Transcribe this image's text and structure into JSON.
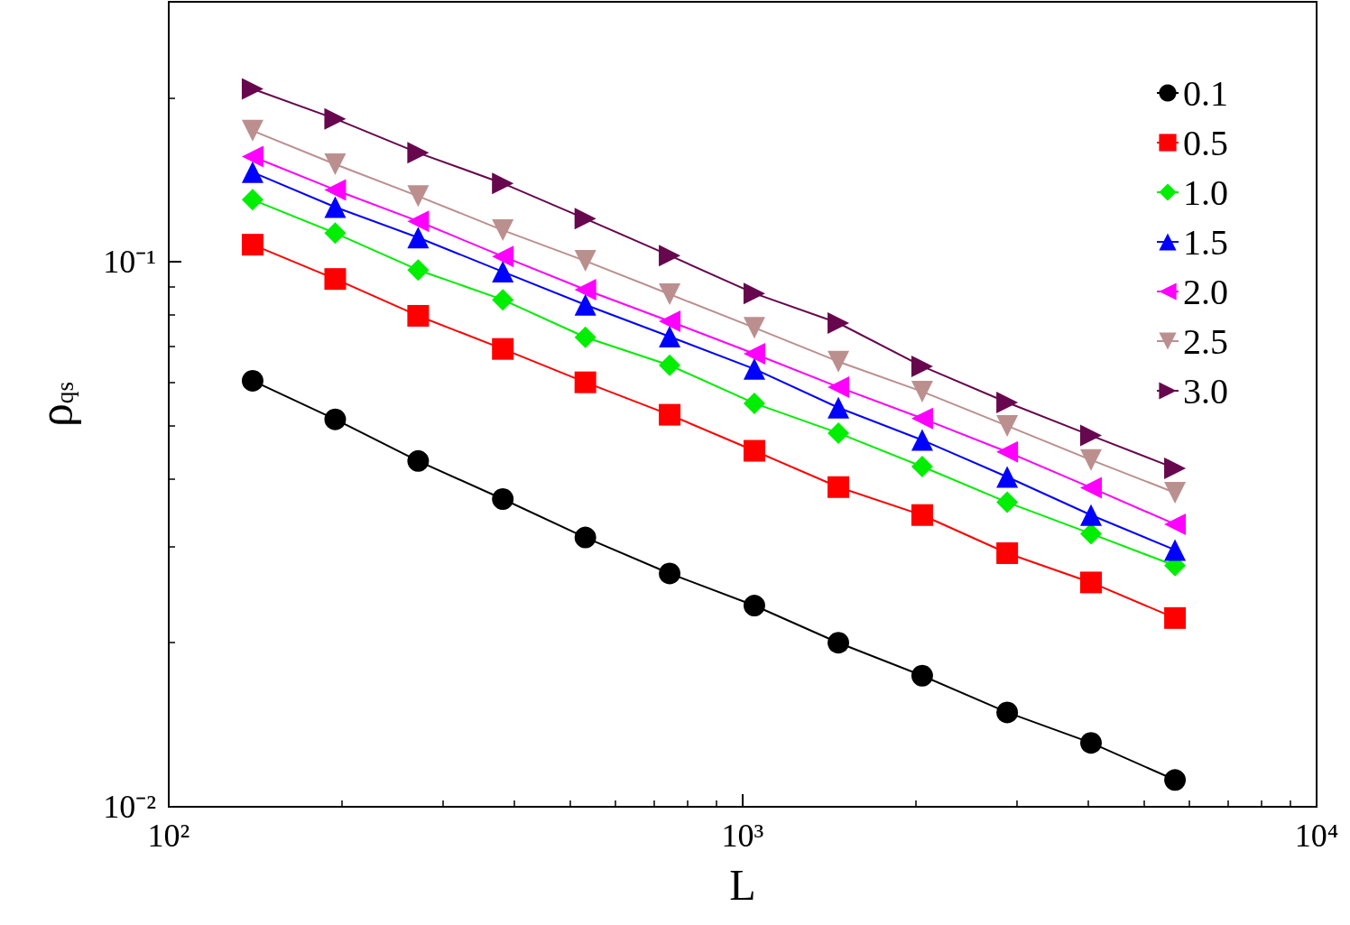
{
  "chart_data": {
    "type": "line",
    "xlabel": "L",
    "ylabel": "ρ$_{qs}$",
    "log": "xy",
    "grid": false,
    "legend": "top right",
    "line_style": "solid",
    "xlim": [
      100,
      10000
    ],
    "xticks": [
      {
        "value": 100,
        "label": "10²"
      },
      {
        "value": 1000,
        "label": "10³"
      },
      {
        "value": 10000,
        "label": "10⁴"
      }
    ],
    "ylim": [
      0.01,
      0.3
    ],
    "yticks": [
      {
        "value": 0.01,
        "label": "10⁻²"
      },
      {
        "value": 0.1,
        "label": "10⁻¹"
      }
    ],
    "x": [
      140,
      195,
      272,
      382,
      532,
      746,
      1048,
      1468,
      2055,
      2890,
      4045,
      5666
    ],
    "series": [
      {
        "name": "0.1",
        "color": "#000000",
        "marker": "circle",
        "values": [
          0.0605,
          0.0514,
          0.0431,
          0.0367,
          0.0312,
          0.0268,
          0.0234,
          0.02,
          0.0174,
          0.0149,
          0.0131,
          0.0112
        ]
      },
      {
        "name": "0.5",
        "color": "#ff0000",
        "marker": "square",
        "values": [
          0.1075,
          0.093,
          0.0796,
          0.0692,
          0.0601,
          0.0524,
          0.045,
          0.0386,
          0.0343,
          0.0292,
          0.0258,
          0.0222
        ]
      },
      {
        "name": "1.0",
        "color": "#00ee00",
        "marker": "diamond",
        "values": [
          0.13,
          0.1129,
          0.0966,
          0.0852,
          0.0727,
          0.0646,
          0.055,
          0.0485,
          0.0421,
          0.0362,
          0.0317,
          0.0277
        ]
      },
      {
        "name": "1.5",
        "color": "#0000ff",
        "marker": "triangle",
        "values": [
          0.146,
          0.126,
          0.1108,
          0.0959,
          0.0834,
          0.0729,
          0.0636,
          0.054,
          0.0471,
          0.0403,
          0.0343,
          0.0296
        ]
      },
      {
        "name": "2.0",
        "color": "#ff00ff",
        "marker": "triangle-left",
        "values": [
          0.156,
          0.1355,
          0.1187,
          0.1023,
          0.0889,
          0.0778,
          0.0678,
          0.0589,
          0.0516,
          0.0448,
          0.0385,
          0.033
        ]
      },
      {
        "name": "2.5",
        "color": "#bc8f8f",
        "marker": "triangle-down",
        "values": [
          0.174,
          0.151,
          0.132,
          0.1143,
          0.1004,
          0.0872,
          0.0757,
          0.0656,
          0.0578,
          0.05,
          0.0433,
          0.0377
        ]
      },
      {
        "name": "3.0",
        "color": "#67074e",
        "marker": "triangle-right",
        "values": [
          0.2076,
          0.183,
          0.1585,
          0.1393,
          0.12,
          0.1027,
          0.0875,
          0.0772,
          0.0643,
          0.0552,
          0.048,
          0.0418
        ]
      }
    ]
  }
}
